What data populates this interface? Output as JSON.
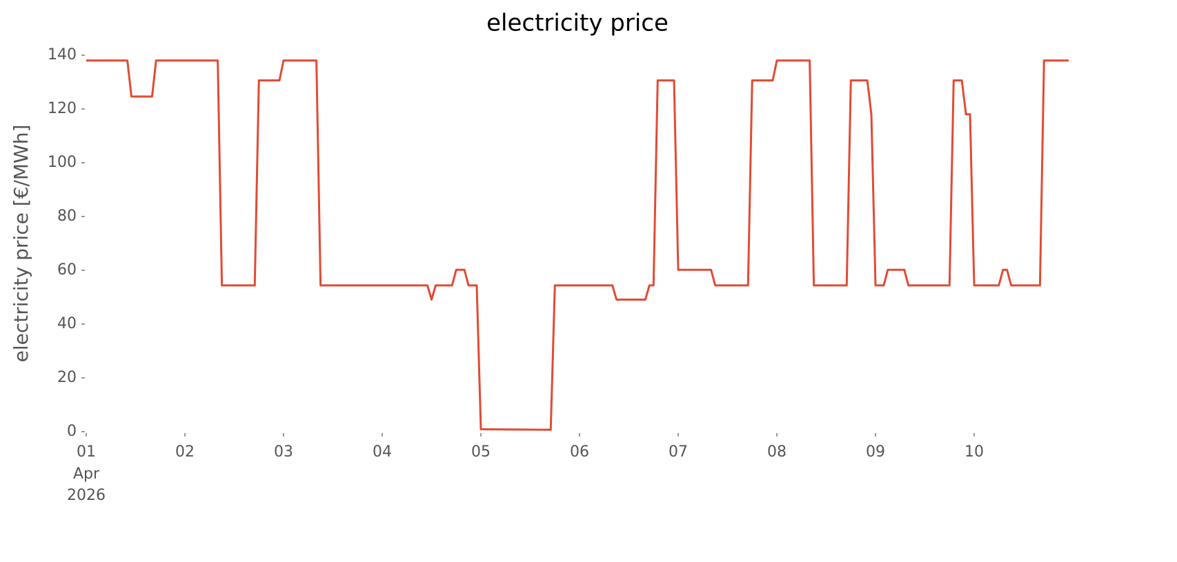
{
  "chart_data": {
    "type": "line",
    "title": "electricity price",
    "ylabel": "electricity price [€/MWh]",
    "x": [
      0,
      0.417,
      0.458,
      0.667,
      0.708,
      1.333,
      1.375,
      1.708,
      1.75,
      1.958,
      2.0,
      2.333,
      2.375,
      3.458,
      3.5,
      3.542,
      3.708,
      3.75,
      3.833,
      3.875,
      3.958,
      4.0,
      4.708,
      4.75,
      5.333,
      5.375,
      5.667,
      5.708,
      5.75,
      5.792,
      5.958,
      6.0,
      6.333,
      6.375,
      6.708,
      6.75,
      6.958,
      7.0,
      7.333,
      7.375,
      7.708,
      7.75,
      7.917,
      7.958,
      8.0,
      8.083,
      8.125,
      8.292,
      8.333,
      8.75,
      8.792,
      8.875,
      8.917,
      8.958,
      9.0,
      9.25,
      9.292,
      9.333,
      9.375,
      9.667,
      9.708,
      9.958
    ],
    "series": [
      {
        "name": "electricity price",
        "color": "#e24a33",
        "values": [
          138,
          138,
          124.6,
          124.6,
          138,
          138,
          54.4,
          54.4,
          130.6,
          130.6,
          138,
          138,
          54.4,
          54.4,
          49.1,
          54.4,
          54.4,
          60.2,
          60.2,
          54.4,
          54.4,
          0.9,
          0.7,
          54.4,
          54.4,
          49.1,
          49.1,
          54.4,
          54.4,
          130.6,
          130.6,
          60.2,
          60.2,
          54.4,
          54.4,
          130.6,
          130.6,
          138,
          138,
          54.4,
          54.4,
          130.6,
          130.6,
          118,
          54.4,
          54.4,
          60.2,
          60.2,
          54.4,
          54.4,
          130.6,
          130.6,
          118,
          118,
          54.4,
          54.4,
          60.2,
          60.2,
          54.4,
          54.4,
          138,
          138
        ]
      }
    ],
    "xlim": [
      0,
      9.958
    ],
    "xticks": [
      {
        "value": 0,
        "label": "01"
      },
      {
        "value": 1,
        "label": "02"
      },
      {
        "value": 2,
        "label": "03"
      },
      {
        "value": 3,
        "label": "04"
      },
      {
        "value": 4,
        "label": "05"
      },
      {
        "value": 5,
        "label": "06"
      },
      {
        "value": 6,
        "label": "07"
      },
      {
        "value": 7,
        "label": "08"
      },
      {
        "value": 8,
        "label": "09"
      },
      {
        "value": 9,
        "label": "10"
      }
    ],
    "x_date_lines": [
      "Apr",
      "2026"
    ],
    "ylim": [
      0,
      140
    ],
    "yticks": [
      0,
      20,
      40,
      60,
      80,
      100,
      120,
      140
    ],
    "grid": false
  }
}
